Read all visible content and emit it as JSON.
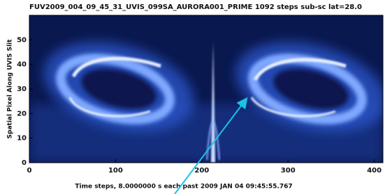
{
  "chart_data": {
    "type": "image",
    "title": "FUV2009_004_09_45_31_UVIS_099SA_AURORA001_PRIME 1092 steps sub-sc lat=28.0",
    "x_label": "Time steps, 8.0000000 s each past 2009 JAN 04 09:45:55.767",
    "y_label": "Spatial Pixel Along UVIS Slit",
    "xlim": [
      0,
      410
    ],
    "xticks": [
      0,
      100,
      200,
      300,
      400
    ],
    "ylim": [
      0,
      60
    ],
    "yticks": [
      0,
      10,
      20,
      30,
      40,
      50
    ]
  }
}
